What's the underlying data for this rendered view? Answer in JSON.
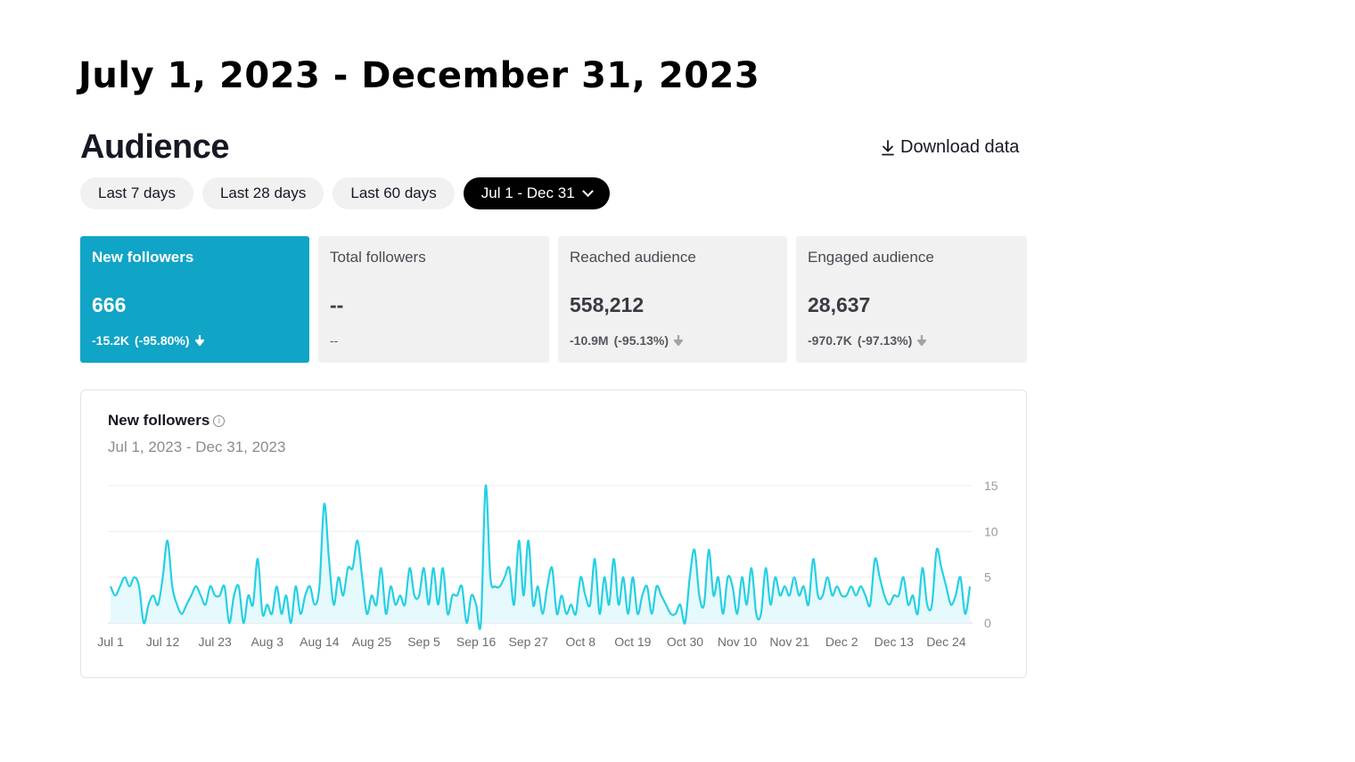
{
  "header": {
    "date_range_title": "July 1, 2023 - December 31, 2023",
    "section_title": "Audience",
    "download_label": "Download data",
    "download_icon": "download-icon"
  },
  "filters": [
    {
      "label": "Last 7 days",
      "active": false
    },
    {
      "label": "Last 28 days",
      "active": false
    },
    {
      "label": "Last 60 days",
      "active": false
    },
    {
      "label": "Jul 1 - Dec 31",
      "active": true
    }
  ],
  "metrics": [
    {
      "label": "New followers",
      "value": "666",
      "delta": "-15.2K",
      "delta_pct": "(-95.80%)",
      "active": true
    },
    {
      "label": "Total followers",
      "value": "--",
      "delta": "--",
      "delta_pct": "",
      "active": false
    },
    {
      "label": "Reached audience",
      "value": "558,212",
      "delta": "-10.9M",
      "delta_pct": "(-95.13%)",
      "active": false
    },
    {
      "label": "Engaged audience",
      "value": "28,637",
      "delta": "-970.7K",
      "delta_pct": "(-97.13%)",
      "active": false
    }
  ],
  "colors": {
    "accent": "#10a4c6",
    "line": "#25d0e3",
    "fill": "#e6f9fc",
    "pill_active": "#000000"
  },
  "chart": {
    "title": "New followers",
    "subtitle": "Jul 1, 2023 - Dec 31, 2023"
  },
  "chart_data": {
    "type": "area",
    "title": "New followers",
    "subtitle": "Jul 1, 2023 - Dec 31, 2023",
    "x_tick_labels": [
      "Jul 1",
      "Jul 12",
      "Jul 23",
      "Aug 3",
      "Aug 14",
      "Aug 25",
      "Sep 5",
      "Sep 16",
      "Sep 27",
      "Oct 8",
      "Oct 19",
      "Oct 30",
      "Nov 10",
      "Nov 21",
      "Dec 2",
      "Dec 13",
      "Dec 24"
    ],
    "y_ticks": [
      0,
      5,
      10,
      15
    ],
    "ylim": [
      0,
      15
    ],
    "grid": true,
    "series": [
      {
        "values": [
          4,
          3,
          4,
          5,
          4,
          5,
          4,
          0,
          2,
          3,
          2,
          5,
          9,
          4,
          2,
          1,
          2,
          3,
          4,
          3,
          2,
          4,
          3,
          3,
          4,
          0,
          3,
          4,
          0,
          3,
          2,
          7,
          1,
          2,
          1,
          4,
          1,
          3,
          0,
          4,
          1,
          3,
          4,
          2,
          4,
          13,
          7,
          2,
          5,
          3,
          6,
          6,
          9,
          5,
          1,
          3,
          2,
          6,
          1,
          4,
          2,
          3,
          2,
          6,
          3,
          3,
          6,
          2,
          6,
          2,
          6,
          1,
          3,
          3,
          4,
          0,
          3,
          2,
          0,
          15,
          5,
          4,
          4,
          5,
          6,
          2,
          9,
          3,
          9,
          2,
          4,
          1,
          4,
          6,
          1,
          3,
          1,
          2,
          1,
          5,
          3,
          2,
          7,
          1,
          5,
          2,
          7,
          2,
          5,
          1,
          5,
          1,
          3,
          4,
          1,
          4,
          3,
          2,
          1,
          1,
          2,
          0,
          5,
          8,
          3,
          2,
          8,
          3,
          5,
          1,
          5,
          4,
          1,
          5,
          2,
          6,
          1,
          1,
          6,
          2,
          5,
          3,
          4,
          3,
          5,
          3,
          4,
          2,
          7,
          3,
          3,
          5,
          3,
          4,
          3,
          3,
          4,
          3,
          4,
          3,
          2,
          7,
          5,
          3,
          2,
          3,
          3,
          5,
          2,
          3,
          1,
          6,
          2,
          2,
          8,
          6,
          4,
          2,
          3,
          5,
          1,
          4
        ]
      }
    ]
  }
}
